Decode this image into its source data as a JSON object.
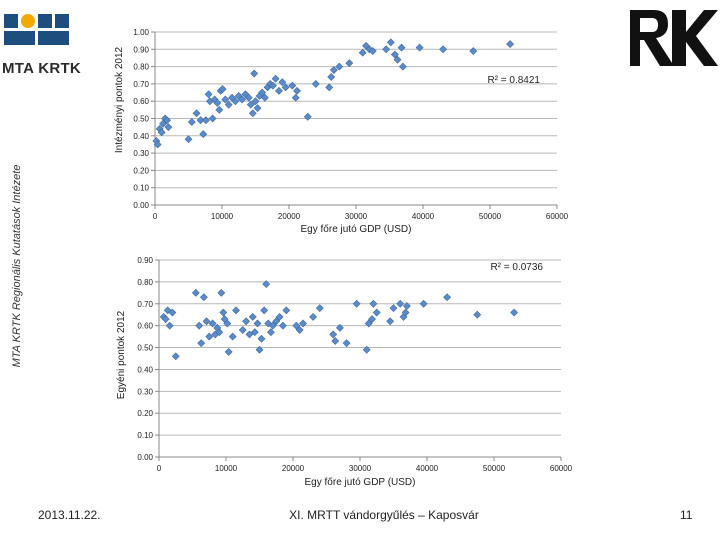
{
  "logo": {
    "text": "MTA KRTK",
    "colors": [
      "#1d4e7e",
      "#f2a900",
      "#1d4e7e",
      "#1d4e7e",
      "#1d4e7e",
      "#1d4e7e"
    ]
  },
  "side_label": "MTA KRTK Regionális Kutatások Intézete",
  "footer": {
    "date": "2013.11.22.",
    "event": "XI. MRTT vándorgyűlés – Kaposvár",
    "page": "11"
  },
  "chart_data": [
    {
      "type": "scatter",
      "ylabel": "Intézményi pontok 2012",
      "xlabel": "Egy főre jutó GDP (USD)",
      "r2": "R² = 0.8421",
      "xlim": [
        0,
        60000
      ],
      "ylim": [
        0,
        1
      ],
      "xticks": [
        0,
        10000,
        20000,
        30000,
        40000,
        50000,
        60000
      ],
      "xtick_labels": [
        "0",
        "10000",
        "20000",
        "30000",
        "40000",
        "50000",
        "60000"
      ],
      "yticks": [
        0,
        0.1,
        0.2,
        0.3,
        0.4,
        0.5,
        0.6,
        0.7,
        0.8,
        0.9,
        1.0
      ],
      "ytick_labels": [
        "0.00",
        "0.10",
        "0.20",
        "0.30",
        "0.40",
        "0.50",
        "0.60",
        "0.70",
        "0.80",
        "0.90",
        "1.00"
      ],
      "marker_color": "#5b8bc9",
      "points": [
        [
          200,
          0.37
        ],
        [
          400,
          0.35
        ],
        [
          700,
          0.44
        ],
        [
          1000,
          0.42
        ],
        [
          1200,
          0.47
        ],
        [
          1500,
          0.5
        ],
        [
          1800,
          0.49
        ],
        [
          2000,
          0.45
        ],
        [
          5000,
          0.38
        ],
        [
          5500,
          0.48
        ],
        [
          6200,
          0.53
        ],
        [
          6800,
          0.49
        ],
        [
          7200,
          0.41
        ],
        [
          7600,
          0.49
        ],
        [
          8000,
          0.64
        ],
        [
          8200,
          0.6
        ],
        [
          8600,
          0.5
        ],
        [
          8900,
          0.61
        ],
        [
          9300,
          0.59
        ],
        [
          9600,
          0.55
        ],
        [
          9800,
          0.66
        ],
        [
          10100,
          0.67
        ],
        [
          10500,
          0.61
        ],
        [
          11000,
          0.58
        ],
        [
          11500,
          0.62
        ],
        [
          12000,
          0.6
        ],
        [
          12500,
          0.63
        ],
        [
          13000,
          0.61
        ],
        [
          13500,
          0.64
        ],
        [
          14000,
          0.62
        ],
        [
          14300,
          0.58
        ],
        [
          14600,
          0.53
        ],
        [
          14800,
          0.76
        ],
        [
          15000,
          0.6
        ],
        [
          15300,
          0.56
        ],
        [
          15600,
          0.63
        ],
        [
          16000,
          0.65
        ],
        [
          16400,
          0.62
        ],
        [
          16800,
          0.68
        ],
        [
          17200,
          0.7
        ],
        [
          17600,
          0.69
        ],
        [
          18000,
          0.73
        ],
        [
          18500,
          0.66
        ],
        [
          19000,
          0.71
        ],
        [
          19500,
          0.68
        ],
        [
          20500,
          0.69
        ],
        [
          21000,
          0.62
        ],
        [
          21200,
          0.66
        ],
        [
          22800,
          0.51
        ],
        [
          24000,
          0.7
        ],
        [
          26000,
          0.68
        ],
        [
          26300,
          0.74
        ],
        [
          26700,
          0.78
        ],
        [
          27500,
          0.8
        ],
        [
          29000,
          0.82
        ],
        [
          31000,
          0.88
        ],
        [
          31500,
          0.92
        ],
        [
          32000,
          0.9
        ],
        [
          32500,
          0.89
        ],
        [
          34500,
          0.9
        ],
        [
          35200,
          0.94
        ],
        [
          35800,
          0.87
        ],
        [
          36200,
          0.84
        ],
        [
          36800,
          0.91
        ],
        [
          37000,
          0.8
        ],
        [
          39500,
          0.91
        ],
        [
          43000,
          0.9
        ],
        [
          47500,
          0.89
        ],
        [
          53000,
          0.93
        ]
      ]
    },
    {
      "type": "scatter",
      "ylabel": "Egyéni pontok 2012",
      "xlabel": "Egy főre jutó GDP (USD)",
      "r2": "R² = 0.0736",
      "xlim": [
        0,
        60000
      ],
      "ylim": [
        0,
        0.9
      ],
      "xticks": [
        0,
        10000,
        20000,
        30000,
        40000,
        50000,
        60000
      ],
      "xtick_labels": [
        "0",
        "10000",
        "20000",
        "30000",
        "40000",
        "50000",
        "60000"
      ],
      "yticks": [
        0,
        0.1,
        0.2,
        0.3,
        0.4,
        0.5,
        0.6,
        0.7,
        0.8,
        0.9
      ],
      "ytick_labels": [
        "0.00",
        "0.10",
        "0.20",
        "0.30",
        "0.40",
        "0.50",
        "0.60",
        "0.70",
        "0.80",
        "0.90"
      ],
      "marker_color": "#5b8bc9",
      "points": [
        [
          700,
          0.64
        ],
        [
          1000,
          0.63
        ],
        [
          1300,
          0.67
        ],
        [
          1600,
          0.6
        ],
        [
          2000,
          0.66
        ],
        [
          2500,
          0.46
        ],
        [
          5500,
          0.75
        ],
        [
          6000,
          0.6
        ],
        [
          6300,
          0.52
        ],
        [
          6700,
          0.73
        ],
        [
          7100,
          0.62
        ],
        [
          7500,
          0.55
        ],
        [
          8000,
          0.61
        ],
        [
          8400,
          0.56
        ],
        [
          8700,
          0.59
        ],
        [
          9000,
          0.57
        ],
        [
          9300,
          0.75
        ],
        [
          9600,
          0.66
        ],
        [
          9800,
          0.63
        ],
        [
          10200,
          0.61
        ],
        [
          10400,
          0.48
        ],
        [
          11000,
          0.55
        ],
        [
          11500,
          0.67
        ],
        [
          12500,
          0.58
        ],
        [
          13000,
          0.62
        ],
        [
          13500,
          0.56
        ],
        [
          14000,
          0.64
        ],
        [
          14300,
          0.57
        ],
        [
          14700,
          0.61
        ],
        [
          15000,
          0.49
        ],
        [
          15300,
          0.54
        ],
        [
          15700,
          0.67
        ],
        [
          16000,
          0.79
        ],
        [
          16300,
          0.61
        ],
        [
          16700,
          0.57
        ],
        [
          17000,
          0.6
        ],
        [
          17500,
          0.62
        ],
        [
          18000,
          0.64
        ],
        [
          18500,
          0.6
        ],
        [
          19000,
          0.67
        ],
        [
          20500,
          0.6
        ],
        [
          21000,
          0.58
        ],
        [
          21500,
          0.61
        ],
        [
          23000,
          0.64
        ],
        [
          24000,
          0.68
        ],
        [
          26000,
          0.56
        ],
        [
          26300,
          0.53
        ],
        [
          27000,
          0.59
        ],
        [
          28000,
          0.52
        ],
        [
          29500,
          0.7
        ],
        [
          31000,
          0.49
        ],
        [
          31300,
          0.61
        ],
        [
          31800,
          0.63
        ],
        [
          32000,
          0.7
        ],
        [
          32500,
          0.66
        ],
        [
          34500,
          0.62
        ],
        [
          35000,
          0.68
        ],
        [
          36000,
          0.7
        ],
        [
          36500,
          0.64
        ],
        [
          36800,
          0.66
        ],
        [
          37000,
          0.69
        ],
        [
          39500,
          0.7
        ],
        [
          43000,
          0.73
        ],
        [
          47500,
          0.65
        ],
        [
          53000,
          0.66
        ]
      ]
    }
  ]
}
